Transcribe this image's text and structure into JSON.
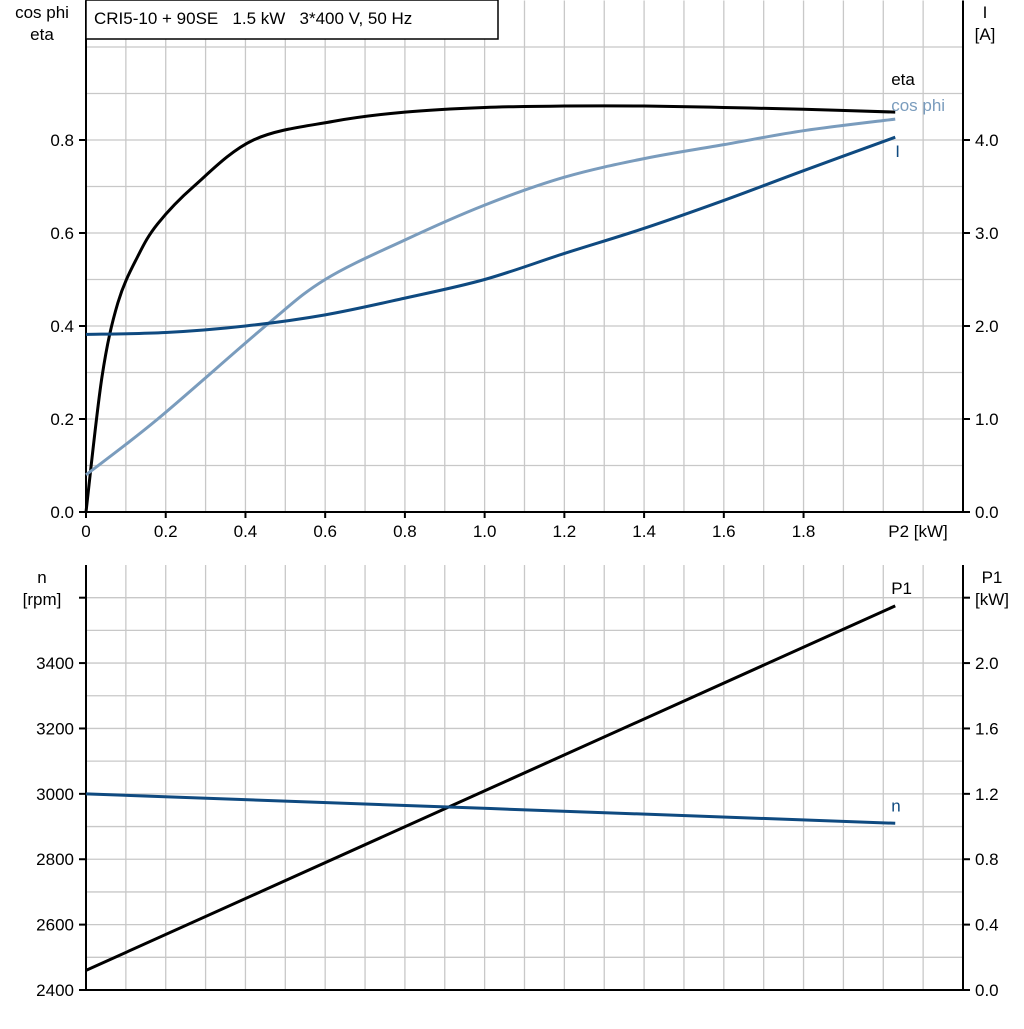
{
  "chart_data": [
    {
      "type": "line",
      "title": "CRI5-10 + 90SE   1.5 kW   3*400 V, 50 Hz",
      "xlabel": "P2 [kW]",
      "ylabel_left": [
        "cos phi",
        "eta"
      ],
      "ylabel_right": [
        "I",
        "[A]"
      ],
      "xlim": [
        0,
        2.2
      ],
      "ylim_left": [
        0,
        1.1
      ],
      "ylim_right": [
        0,
        5.5
      ],
      "x_ticks": [
        "0",
        "0.2",
        "0.4",
        "0.6",
        "0.8",
        "1.0",
        "1.2",
        "1.4",
        "1.6",
        "1.8"
      ],
      "y_ticks_left": [
        "0.0",
        "0.2",
        "0.4",
        "0.6",
        "0.8"
      ],
      "y_ticks_right": [
        "0.0",
        "1.0",
        "2.0",
        "3.0",
        "4.0"
      ],
      "grid": true,
      "series": [
        {
          "name": "eta",
          "axis": "left",
          "color": "#000000",
          "x": [
            0,
            0.04,
            0.08,
            0.13,
            0.18,
            0.27,
            0.42,
            0.62,
            0.8,
            1.0,
            1.2,
            1.4,
            1.6,
            1.8,
            2.03
          ],
          "y": [
            0,
            0.29,
            0.45,
            0.55,
            0.62,
            0.7,
            0.8,
            0.84,
            0.86,
            0.87,
            0.873,
            0.873,
            0.87,
            0.866,
            0.86
          ]
        },
        {
          "name": "cos phi",
          "axis": "left",
          "color": "#7a9cbd",
          "x": [
            0,
            0.18,
            0.45,
            0.6,
            0.8,
            1.0,
            1.2,
            1.4,
            1.6,
            1.8,
            2.03
          ],
          "y": [
            0.08,
            0.2,
            0.4,
            0.5,
            0.585,
            0.66,
            0.72,
            0.76,
            0.79,
            0.82,
            0.845
          ]
        },
        {
          "name": "I",
          "axis": "right",
          "color": "#0f4a80",
          "x": [
            0,
            0.2,
            0.4,
            0.6,
            0.8,
            1.0,
            1.2,
            1.4,
            1.6,
            1.8,
            2.03
          ],
          "y": [
            1.91,
            1.93,
            2.0,
            2.12,
            2.3,
            2.5,
            2.78,
            3.05,
            3.35,
            3.67,
            4.03
          ]
        }
      ]
    },
    {
      "type": "line",
      "ylabel_left": [
        "n",
        "[rpm]"
      ],
      "ylabel_right": [
        "P1",
        "[kW]"
      ],
      "xlim": [
        0,
        2.2
      ],
      "ylim_left": [
        2400,
        3700
      ],
      "ylim_right": [
        0,
        2.6
      ],
      "y_ticks_left": [
        "2400",
        "2600",
        "2800",
        "3000",
        "3200",
        "3400"
      ],
      "y_ticks_right": [
        "0.0",
        "0.4",
        "0.8",
        "1.2",
        "1.6",
        "2.0"
      ],
      "grid": true,
      "series": [
        {
          "name": "P1",
          "axis": "right",
          "color": "#000000",
          "x": [
            0,
            2.03
          ],
          "y": [
            0.12,
            2.35
          ]
        },
        {
          "name": "n",
          "axis": "left",
          "color": "#0f4a80",
          "x": [
            0,
            2.03
          ],
          "y": [
            3000,
            2910
          ]
        }
      ]
    }
  ]
}
